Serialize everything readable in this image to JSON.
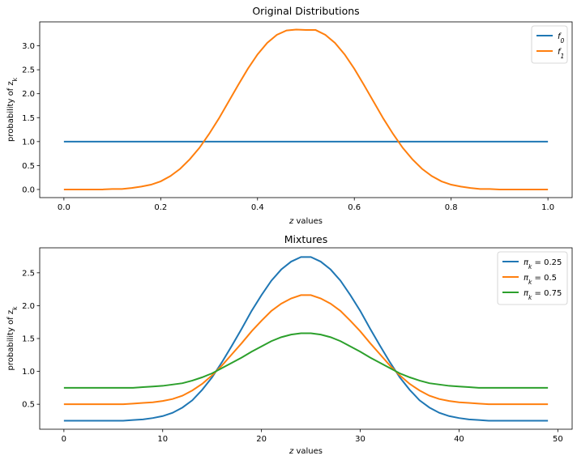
{
  "chart_data": [
    {
      "type": "line",
      "title": "Original Distributions",
      "xlabel": "z values",
      "ylabel": "probability of z_k",
      "xlim": [
        -0.05,
        1.05
      ],
      "ylim": [
        -0.17,
        3.5
      ],
      "xticks": [
        0.0,
        0.2,
        0.4,
        0.6,
        0.8,
        1.0
      ],
      "xtick_labels": [
        "0.0",
        "0.2",
        "0.4",
        "0.6",
        "0.8",
        "1.0"
      ],
      "yticks": [
        0.0,
        0.5,
        1.0,
        1.5,
        2.0,
        2.5,
        3.0
      ],
      "ytick_labels": [
        "0.0",
        "0.5",
        "1.0",
        "1.5",
        "2.0",
        "2.5",
        "3.0"
      ],
      "grid": false,
      "legend": "top-right",
      "series": [
        {
          "name": "f",
          "name_sub": "0",
          "color": "#1f77b4",
          "x": [
            0.0,
            1.0
          ],
          "values": [
            1.0,
            1.0
          ]
        },
        {
          "name": "f",
          "name_sub": "1",
          "color": "#ff7f0e",
          "x": [
            0.0,
            0.02,
            0.04,
            0.06,
            0.08,
            0.1,
            0.12,
            0.14,
            0.16,
            0.18,
            0.2,
            0.22,
            0.24,
            0.26,
            0.28,
            0.3,
            0.32,
            0.34,
            0.36,
            0.38,
            0.4,
            0.42,
            0.44,
            0.46,
            0.48,
            0.5,
            0.52,
            0.54,
            0.56,
            0.58,
            0.6,
            0.62,
            0.64,
            0.66,
            0.68,
            0.7,
            0.72,
            0.74,
            0.76,
            0.78,
            0.8,
            0.82,
            0.84,
            0.86,
            0.88,
            0.9,
            0.92,
            0.94,
            0.96,
            0.98,
            1.0
          ],
          "values": [
            0.0,
            0.0,
            0.0,
            0.0,
            0.0,
            0.01,
            0.01,
            0.03,
            0.06,
            0.1,
            0.17,
            0.28,
            0.43,
            0.63,
            0.87,
            1.16,
            1.48,
            1.83,
            2.18,
            2.52,
            2.82,
            3.06,
            3.23,
            3.32,
            3.34,
            3.33,
            3.33,
            3.23,
            3.06,
            2.82,
            2.52,
            2.18,
            1.83,
            1.48,
            1.16,
            0.87,
            0.63,
            0.43,
            0.28,
            0.17,
            0.1,
            0.06,
            0.03,
            0.01,
            0.01,
            0.0,
            0.0,
            0.0,
            0.0,
            0.0,
            0.0
          ]
        }
      ]
    },
    {
      "type": "line",
      "title": "Mixtures",
      "xlabel": "z values",
      "ylabel": "probability of z_k",
      "xlim": [
        -2.45,
        51.45
      ],
      "ylim": [
        0.12,
        2.88
      ],
      "xticks": [
        0,
        10,
        20,
        30,
        40,
        50
      ],
      "xtick_labels": [
        "0",
        "10",
        "20",
        "30",
        "40",
        "50"
      ],
      "yticks": [
        0.5,
        1.0,
        1.5,
        2.0,
        2.5
      ],
      "ytick_labels": [
        "0.5",
        "1.0",
        "1.5",
        "2.0",
        "2.5"
      ],
      "grid": false,
      "legend": "top-right",
      "x": [
        0,
        1,
        2,
        3,
        4,
        5,
        6,
        7,
        8,
        9,
        10,
        11,
        12,
        13,
        14,
        15,
        16,
        17,
        18,
        19,
        20,
        21,
        22,
        23,
        24,
        25,
        26,
        27,
        28,
        29,
        30,
        31,
        32,
        33,
        34,
        35,
        36,
        37,
        38,
        39,
        40,
        41,
        42,
        43,
        44,
        45,
        46,
        47,
        48,
        49
      ],
      "series": [
        {
          "name": "π",
          "name_sub": "k",
          "name_suffix": " = 0.25",
          "color": "#1f77b4",
          "values": [
            0.25,
            0.25,
            0.25,
            0.25,
            0.25,
            0.25,
            0.25,
            0.26,
            0.27,
            0.29,
            0.32,
            0.37,
            0.45,
            0.56,
            0.72,
            0.91,
            1.14,
            1.39,
            1.65,
            1.92,
            2.16,
            2.38,
            2.55,
            2.67,
            2.74,
            2.74,
            2.67,
            2.55,
            2.38,
            2.16,
            1.92,
            1.65,
            1.39,
            1.14,
            0.91,
            0.72,
            0.56,
            0.45,
            0.37,
            0.32,
            0.29,
            0.27,
            0.26,
            0.25,
            0.25,
            0.25,
            0.25,
            0.25,
            0.25,
            0.25
          ]
        },
        {
          "name": "π",
          "name_sub": "k",
          "name_suffix": " = 0.5",
          "color": "#ff7f0e",
          "values": [
            0.5,
            0.5,
            0.5,
            0.5,
            0.5,
            0.5,
            0.5,
            0.51,
            0.52,
            0.53,
            0.55,
            0.58,
            0.63,
            0.71,
            0.81,
            0.94,
            1.09,
            1.26,
            1.43,
            1.61,
            1.77,
            1.92,
            2.03,
            2.11,
            2.16,
            2.16,
            2.11,
            2.03,
            1.92,
            1.77,
            1.61,
            1.43,
            1.26,
            1.09,
            0.94,
            0.81,
            0.71,
            0.63,
            0.58,
            0.55,
            0.53,
            0.52,
            0.51,
            0.5,
            0.5,
            0.5,
            0.5,
            0.5,
            0.5,
            0.5
          ]
        },
        {
          "name": "π",
          "name_sub": "k",
          "name_suffix": " = 0.75",
          "color": "#2ca02c",
          "values": [
            0.75,
            0.75,
            0.75,
            0.75,
            0.75,
            0.75,
            0.75,
            0.75,
            0.76,
            0.77,
            0.78,
            0.8,
            0.82,
            0.86,
            0.91,
            0.97,
            1.05,
            1.13,
            1.21,
            1.3,
            1.38,
            1.46,
            1.52,
            1.56,
            1.58,
            1.58,
            1.56,
            1.52,
            1.46,
            1.38,
            1.3,
            1.21,
            1.13,
            1.05,
            0.97,
            0.91,
            0.86,
            0.82,
            0.8,
            0.78,
            0.77,
            0.76,
            0.75,
            0.75,
            0.75,
            0.75,
            0.75,
            0.75,
            0.75,
            0.75
          ]
        }
      ]
    }
  ]
}
